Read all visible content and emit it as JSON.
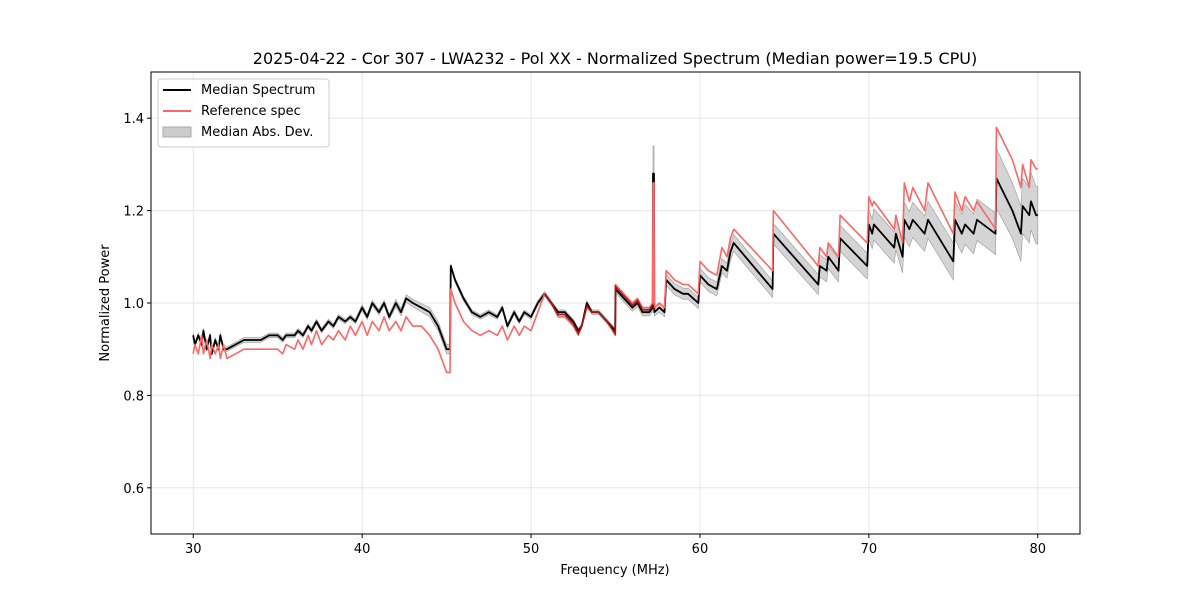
{
  "chart_data": {
    "type": "line",
    "title": "2025-04-22 - Cor 307 - LWA232 - Pol XX - Normalized Spectrum (Median power=19.5 CPU)",
    "xlabel": "Frequency (MHz)",
    "ylabel": "Normalized Power",
    "xlim": [
      27.5,
      82.5
    ],
    "ylim": [
      0.5,
      1.5
    ],
    "xticks": [
      30,
      40,
      50,
      60,
      70,
      80
    ],
    "xtick_labels": [
      "30",
      "40",
      "50",
      "60",
      "70",
      "80"
    ],
    "yticks": [
      0.6,
      0.8,
      1.0,
      1.2,
      1.4
    ],
    "ytick_labels": [
      "0.6",
      "0.8",
      "1.0",
      "1.2",
      "1.4"
    ],
    "grid": true,
    "legend_position": "top-left",
    "legend": [
      {
        "label": "Median Spectrum",
        "kind": "line",
        "color": "#000000"
      },
      {
        "label": "Reference spec",
        "kind": "line",
        "color": "#ff6666"
      },
      {
        "label": "Median Abs. Dev.",
        "kind": "fill",
        "color": "#cccccc"
      }
    ],
    "series": [
      {
        "name": "Median Spectrum",
        "color": "#000000",
        "x": [
          30.0,
          30.1,
          30.3,
          30.5,
          30.6,
          30.8,
          31.0,
          31.1,
          31.3,
          31.5,
          31.6,
          31.8,
          32.0,
          32.5,
          33.0,
          34.0,
          34.5,
          35.0,
          35.3,
          35.5,
          36.0,
          36.2,
          36.5,
          36.8,
          37.0,
          37.3,
          37.6,
          38.0,
          38.3,
          38.6,
          39.0,
          39.3,
          39.6,
          40.0,
          40.3,
          40.6,
          41.0,
          41.3,
          41.6,
          42.0,
          42.3,
          42.6,
          43.0,
          43.5,
          44.0,
          44.5,
          45.0,
          45.2,
          45.25,
          45.5,
          46.0,
          46.5,
          47.0,
          47.5,
          48.0,
          48.3,
          48.6,
          49.0,
          49.3,
          49.6,
          50.0,
          50.4,
          50.8,
          51.2,
          51.6,
          52.0,
          52.5,
          52.8,
          53.0,
          53.3,
          53.6,
          54.0,
          54.5,
          54.98,
          55.0,
          55.5,
          56.0,
          56.3,
          56.6,
          57.0,
          57.2,
          57.22,
          57.28,
          57.3,
          57.6,
          57.9,
          58.0,
          58.5,
          59.0,
          59.3,
          59.6,
          59.9,
          60.0,
          60.5,
          61.0,
          61.3,
          61.6,
          61.8,
          62.0,
          64.3,
          64.35,
          67.0,
          67.1,
          67.5,
          67.6,
          68.2,
          68.3,
          69.9,
          70.0,
          70.2,
          70.3,
          71.5,
          71.6,
          72.0,
          72.1,
          72.4,
          72.6,
          73.3,
          73.5,
          75.0,
          75.1,
          75.5,
          75.7,
          76.2,
          76.4,
          77.5,
          77.55,
          78.5,
          79.0,
          79.1,
          79.5,
          79.6,
          79.9,
          80.0
        ],
        "y": [
          0.93,
          0.91,
          0.93,
          0.91,
          0.94,
          0.9,
          0.93,
          0.89,
          0.92,
          0.9,
          0.93,
          0.9,
          0.9,
          0.91,
          0.92,
          0.92,
          0.93,
          0.93,
          0.92,
          0.93,
          0.93,
          0.94,
          0.93,
          0.95,
          0.94,
          0.96,
          0.94,
          0.96,
          0.95,
          0.97,
          0.96,
          0.97,
          0.96,
          0.99,
          0.97,
          1.0,
          0.98,
          1.0,
          0.97,
          1.0,
          0.98,
          1.01,
          1.0,
          0.99,
          0.98,
          0.95,
          0.9,
          0.9,
          1.08,
          1.05,
          1.01,
          0.98,
          0.97,
          0.98,
          0.97,
          0.99,
          0.95,
          0.98,
          0.96,
          0.98,
          0.97,
          1.0,
          1.02,
          1.0,
          0.98,
          0.98,
          0.96,
          0.94,
          0.95,
          1.0,
          0.98,
          0.98,
          0.96,
          0.94,
          1.03,
          1.01,
          0.99,
          1.0,
          0.98,
          0.98,
          0.99,
          1.28,
          1.28,
          0.98,
          0.99,
          0.98,
          1.05,
          1.03,
          1.02,
          1.02,
          1.01,
          1.0,
          1.06,
          1.04,
          1.03,
          1.08,
          1.07,
          1.11,
          1.13,
          1.03,
          1.15,
          1.04,
          1.08,
          1.07,
          1.1,
          1.07,
          1.14,
          1.08,
          1.17,
          1.15,
          1.17,
          1.12,
          1.15,
          1.1,
          1.18,
          1.16,
          1.18,
          1.15,
          1.18,
          1.09,
          1.18,
          1.15,
          1.17,
          1.15,
          1.18,
          1.15,
          1.27,
          1.2,
          1.15,
          1.21,
          1.19,
          1.22,
          1.19,
          1.19
        ],
        "mad": [
          0.005,
          0.005,
          0.005,
          0.005,
          0.005,
          0.005,
          0.005,
          0.005,
          0.005,
          0.005,
          0.005,
          0.005,
          0.005,
          0.005,
          0.005,
          0.005,
          0.005,
          0.005,
          0.005,
          0.005,
          0.005,
          0.005,
          0.005,
          0.005,
          0.005,
          0.005,
          0.005,
          0.005,
          0.005,
          0.005,
          0.005,
          0.005,
          0.005,
          0.006,
          0.006,
          0.006,
          0.006,
          0.006,
          0.006,
          0.008,
          0.008,
          0.008,
          0.008,
          0.009,
          0.01,
          0.01,
          0.01,
          0.01,
          0.005,
          0.005,
          0.005,
          0.005,
          0.005,
          0.005,
          0.005,
          0.005,
          0.005,
          0.005,
          0.005,
          0.005,
          0.005,
          0.005,
          0.005,
          0.005,
          0.005,
          0.005,
          0.005,
          0.005,
          0.005,
          0.005,
          0.005,
          0.005,
          0.005,
          0.005,
          0.008,
          0.008,
          0.008,
          0.008,
          0.008,
          0.008,
          0.008,
          0.06,
          0.06,
          0.008,
          0.01,
          0.01,
          0.012,
          0.012,
          0.012,
          0.012,
          0.012,
          0.012,
          0.015,
          0.015,
          0.015,
          0.016,
          0.016,
          0.018,
          0.018,
          0.018,
          0.022,
          0.022,
          0.024,
          0.024,
          0.025,
          0.025,
          0.028,
          0.028,
          0.032,
          0.032,
          0.034,
          0.034,
          0.035,
          0.035,
          0.038,
          0.038,
          0.038,
          0.038,
          0.04,
          0.04,
          0.042,
          0.042,
          0.043,
          0.043,
          0.045,
          0.045,
          0.065,
          0.06,
          0.06,
          0.06,
          0.06,
          0.062,
          0.062,
          0.062
        ]
      },
      {
        "name": "Reference spec",
        "color": "#ff6666",
        "x": [
          30.0,
          30.1,
          30.3,
          30.5,
          30.6,
          30.8,
          31.0,
          31.1,
          31.3,
          31.5,
          31.6,
          31.8,
          32.0,
          32.5,
          33.0,
          34.0,
          34.5,
          35.0,
          35.3,
          35.5,
          36.0,
          36.2,
          36.5,
          36.8,
          37.0,
          37.3,
          37.6,
          38.0,
          38.3,
          38.6,
          39.0,
          39.3,
          39.6,
          40.0,
          40.3,
          40.6,
          41.0,
          41.3,
          41.6,
          42.0,
          42.3,
          42.6,
          43.0,
          43.5,
          44.0,
          44.5,
          45.0,
          45.2,
          45.25,
          45.5,
          46.0,
          46.5,
          47.0,
          47.5,
          48.0,
          48.3,
          48.6,
          49.0,
          49.3,
          49.6,
          50.0,
          50.4,
          50.8,
          51.2,
          51.6,
          52.0,
          52.5,
          52.8,
          53.0,
          53.3,
          53.6,
          54.0,
          54.5,
          54.98,
          55.0,
          55.5,
          56.0,
          56.3,
          56.6,
          57.0,
          57.2,
          57.22,
          57.28,
          57.3,
          57.6,
          57.9,
          58.0,
          58.5,
          59.0,
          59.3,
          59.6,
          59.9,
          60.0,
          60.5,
          61.0,
          61.3,
          61.6,
          61.8,
          62.0,
          64.3,
          64.35,
          67.0,
          67.1,
          67.5,
          67.6,
          68.2,
          68.3,
          69.9,
          70.0,
          70.2,
          70.3,
          71.5,
          71.6,
          72.0,
          72.1,
          72.4,
          72.6,
          73.3,
          73.5,
          75.0,
          75.1,
          75.5,
          75.7,
          76.2,
          76.4,
          77.5,
          77.55,
          78.5,
          79.0,
          79.1,
          79.5,
          79.6,
          79.9,
          80.0
        ],
        "y": [
          0.89,
          0.91,
          0.89,
          0.93,
          0.89,
          0.92,
          0.88,
          0.91,
          0.89,
          0.91,
          0.88,
          0.91,
          0.88,
          0.89,
          0.9,
          0.9,
          0.9,
          0.9,
          0.89,
          0.91,
          0.9,
          0.92,
          0.9,
          0.93,
          0.91,
          0.94,
          0.91,
          0.93,
          0.92,
          0.94,
          0.92,
          0.95,
          0.93,
          0.96,
          0.93,
          0.96,
          0.94,
          0.97,
          0.94,
          0.96,
          0.94,
          0.97,
          0.95,
          0.95,
          0.93,
          0.9,
          0.85,
          0.85,
          1.03,
          1.0,
          0.96,
          0.94,
          0.93,
          0.94,
          0.93,
          0.95,
          0.92,
          0.95,
          0.93,
          0.95,
          0.94,
          0.98,
          1.02,
          1.0,
          0.97,
          0.97,
          0.95,
          0.93,
          0.95,
          0.99,
          0.98,
          0.98,
          0.96,
          0.93,
          1.04,
          1.02,
          1.0,
          1.01,
          0.99,
          0.99,
          1.0,
          1.26,
          1.26,
          0.99,
          1.0,
          0.99,
          1.07,
          1.05,
          1.04,
          1.04,
          1.03,
          1.02,
          1.09,
          1.07,
          1.06,
          1.12,
          1.1,
          1.14,
          1.16,
          1.07,
          1.2,
          1.08,
          1.12,
          1.1,
          1.13,
          1.1,
          1.19,
          1.13,
          1.23,
          1.21,
          1.22,
          1.16,
          1.19,
          1.13,
          1.26,
          1.22,
          1.25,
          1.2,
          1.26,
          1.15,
          1.24,
          1.2,
          1.23,
          1.2,
          1.22,
          1.16,
          1.38,
          1.31,
          1.25,
          1.3,
          1.25,
          1.31,
          1.29,
          1.29
        ]
      }
    ],
    "annotations": [
      {
        "x": 57.25,
        "y": 1.28,
        "note": "narrow spike in median and reference"
      }
    ]
  }
}
